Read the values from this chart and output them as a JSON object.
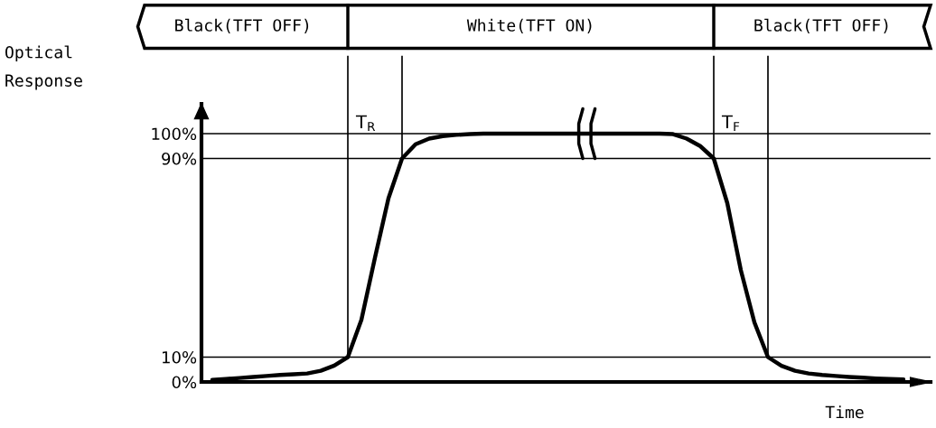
{
  "chart_data": {
    "type": "line",
    "categories": [
      null,
      null,
      null,
      null,
      null,
      null,
      null,
      null,
      null,
      null,
      null,
      null,
      null,
      null,
      null,
      null,
      null,
      null,
      null,
      null,
      null,
      null,
      null,
      null,
      null,
      null,
      null,
      null,
      null,
      null,
      null,
      null,
      null,
      null,
      null,
      null,
      null,
      null,
      null,
      null,
      null,
      null,
      null,
      null,
      null,
      null,
      null,
      null,
      null,
      null,
      null,
      null
    ],
    "series": [
      {
        "color": "#000000",
        "values": [
          0.8,
          1.2,
          1.6,
          2.0,
          2.4,
          2.8,
          3.1,
          3.4,
          4.5,
          6.6,
          10,
          25,
          50,
          74,
          90,
          95.7,
          98,
          99,
          99.5,
          99.8,
          100,
          100,
          100,
          100,
          100,
          100,
          100,
          100,
          100,
          100,
          100,
          100,
          100,
          100,
          99.8,
          98,
          95,
          90,
          72,
          45,
          24,
          10,
          6.5,
          4.5,
          3.4,
          2.8,
          2.4,
          2.0,
          1.7,
          1.4,
          1.2,
          1.0
        ]
      }
    ],
    "ylim": [
      0,
      112
    ],
    "yticks": [
      {
        "value": 0,
        "label": "0%"
      },
      {
        "value": 10,
        "label": "10%"
      },
      {
        "value": 90,
        "label": "90%"
      },
      {
        "value": 100,
        "label": "100%"
      }
    ],
    "ylabel": "Optical\nResponse",
    "xlabel": "Time",
    "tick_labels": "y",
    "grid": false,
    "ref_lines": [
      {
        "axis": "y",
        "value": 100
      },
      {
        "axis": "y",
        "value": 90
      },
      {
        "axis": "y",
        "value": 10
      }
    ],
    "annotations": [
      "Black(TFT OFF)",
      "White(TFT ON)",
      "Black(TFT OFF)",
      "T$_{R}$",
      "T$_{F}$"
    ]
  }
}
